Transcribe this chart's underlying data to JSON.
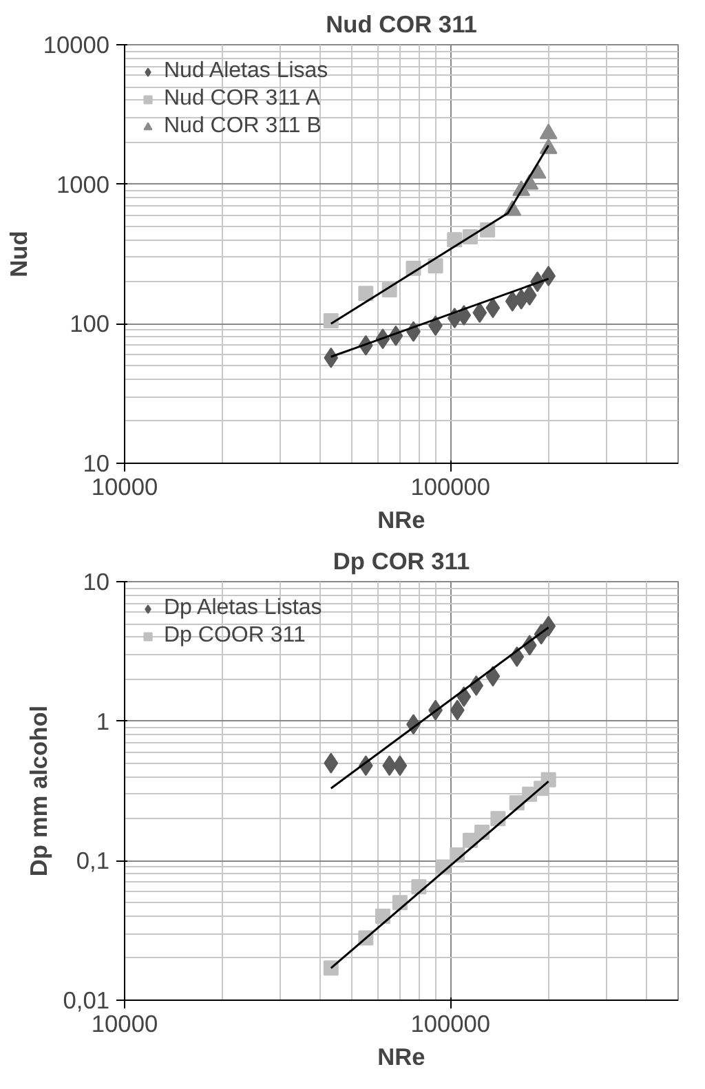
{
  "chart_data": [
    {
      "type": "scatter",
      "title": "Nud COR 311",
      "xlabel": "NRe",
      "ylabel": "Nud",
      "log": "xy",
      "grid": true,
      "legend": "top left",
      "xlim": [
        10000,
        500000
      ],
      "xticks": [
        10000,
        100000
      ],
      "ylim": [
        10,
        10000
      ],
      "yticks": [
        10,
        100,
        1000,
        10000
      ],
      "series": [
        {
          "name": "Nud Aletas Lisas",
          "color": "#5a5a5a",
          "marker": "diamond",
          "x": [
            43000,
            55000,
            62000,
            68000,
            77000,
            90000,
            103000,
            110000,
            123000,
            135000,
            155000,
            165000,
            175000,
            185000,
            200000
          ],
          "values": [
            57,
            70,
            78,
            82,
            88,
            97,
            110,
            115,
            120,
            130,
            145,
            150,
            160,
            200,
            220
          ]
        },
        {
          "name": "Nud COR 311 A",
          "color": "#bfbfbf",
          "marker": "square",
          "x": [
            43000,
            55000,
            65000,
            77000,
            90000,
            103000,
            115000,
            130000
          ],
          "values": [
            105,
            165,
            175,
            250,
            260,
            400,
            420,
            470
          ]
        },
        {
          "name": "Nud COR 311 B",
          "color": "#8c8c8c",
          "marker": "triangle",
          "x": [
            155000,
            165000,
            175000,
            185000,
            200000,
            200000
          ],
          "values": [
            650,
            900,
            1000,
            1200,
            1800,
            2300
          ]
        },
        {
          "type": "line",
          "color": "#000000",
          "x": [
            43000,
            200000
          ],
          "values": [
            58,
            210
          ]
        },
        {
          "type": "line",
          "color": "#000000",
          "x": [
            43000,
            150000,
            200000
          ],
          "values": [
            100,
            620,
            1900
          ]
        }
      ]
    },
    {
      "type": "scatter",
      "title": "Dp COR 311",
      "xlabel": "NRe",
      "ylabel": "Dp mm alcohol",
      "log": "xy",
      "grid": true,
      "legend": "top left",
      "xlim": [
        10000,
        500000
      ],
      "xticks": [
        10000,
        100000
      ],
      "ylim": [
        0.01,
        10
      ],
      "yticks": [
        {
          "value": 0.01,
          "label": "0,01"
        },
        {
          "value": 0.1,
          "label": "0,1"
        },
        1,
        10
      ],
      "series": [
        {
          "name": "Dp Aletas Listas",
          "color": "#5a5a5a",
          "marker": "diamond",
          "x": [
            43000,
            55000,
            65000,
            70000,
            77000,
            90000,
            105000,
            110000,
            120000,
            135000,
            160000,
            175000,
            190000,
            200000
          ],
          "values": [
            0.5,
            0.48,
            0.48,
            0.48,
            0.95,
            1.2,
            1.2,
            1.5,
            1.8,
            2.1,
            2.9,
            3.5,
            4.2,
            4.8
          ]
        },
        {
          "name": "Dp COOR 311",
          "color": "#bfbfbf",
          "marker": "square",
          "x": [
            43000,
            55000,
            62000,
            70000,
            80000,
            95000,
            105000,
            115000,
            125000,
            140000,
            160000,
            175000,
            190000,
            200000
          ],
          "values": [
            0.017,
            0.028,
            0.04,
            0.05,
            0.065,
            0.09,
            0.11,
            0.14,
            0.16,
            0.2,
            0.26,
            0.3,
            0.33,
            0.38
          ]
        },
        {
          "type": "line",
          "color": "#000000",
          "x": [
            43000,
            200000
          ],
          "values": [
            0.33,
            4.7
          ]
        },
        {
          "type": "line",
          "color": "#000000",
          "x": [
            43000,
            200000
          ],
          "values": [
            0.017,
            0.37
          ]
        }
      ]
    }
  ]
}
